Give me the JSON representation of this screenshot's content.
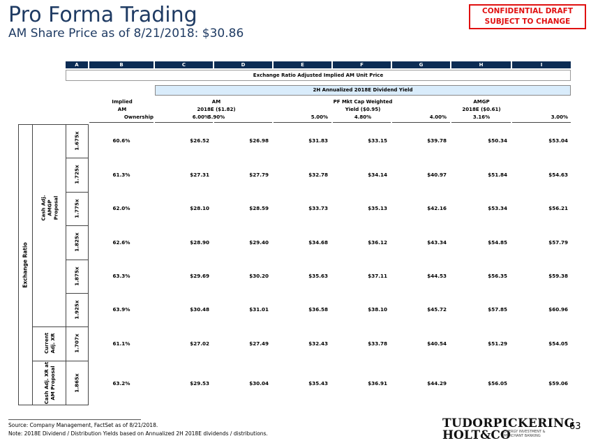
{
  "header": {
    "title": "Pro Forma Trading",
    "subtitle": "AM Share Price as of  8/21/2018: $30.86",
    "confidential_line1": "CONFIDENTIAL DRAFT",
    "confidential_line2": "SUBJECT TO CHANGE"
  },
  "table": {
    "col_letters": [
      "A",
      "B",
      "C",
      "D",
      "E",
      "F",
      "G",
      "H",
      "I"
    ],
    "band_title": "Exchange Ratio Adjusted Implied AM Unit Price",
    "yield_band": "2H Annualized 2018E Dividend Yield",
    "header_implied": [
      "Implied",
      "AM",
      "Ownership"
    ],
    "header_am": [
      "AM",
      "2018E ($1.82)",
      "5.90%"
    ],
    "header_pf": [
      "PF Mkt Cap Weighted",
      "Yield ($0.95)",
      "4.80%"
    ],
    "header_amgp": [
      "AMGP",
      "2018E ($0.61)",
      "3.16%"
    ],
    "header_6": "6.00%",
    "header_5": "5.00%",
    "header_4": "4.00%",
    "header_3": "3.00%",
    "outer_label": "Exchange Ratio",
    "group1_line1": "Cash Adj.",
    "group1_line2": "AMGP",
    "group1_line3": "Proposal",
    "group2_line1": "Current",
    "group2_line2": "Adj. XR",
    "group3_line1": "Cash Adj. XR at",
    "group3_line2": "AM Proposal",
    "rows": [
      {
        "ratio": "1.675x",
        "own": "60.6%",
        "v": [
          "$26.52",
          "$26.98",
          "$31.83",
          "$33.15",
          "$39.78",
          "$50.34",
          "$53.04"
        ]
      },
      {
        "ratio": "1.725x",
        "own": "61.3%",
        "v": [
          "$27.31",
          "$27.79",
          "$32.78",
          "$34.14",
          "$40.97",
          "$51.84",
          "$54.63"
        ]
      },
      {
        "ratio": "1.775x",
        "own": "62.0%",
        "v": [
          "$28.10",
          "$28.59",
          "$33.73",
          "$35.13",
          "$42.16",
          "$53.34",
          "$56.21"
        ]
      },
      {
        "ratio": "1.825x",
        "own": "62.6%",
        "v": [
          "$28.90",
          "$29.40",
          "$34.68",
          "$36.12",
          "$43.34",
          "$54.85",
          "$57.79"
        ]
      },
      {
        "ratio": "1.875x",
        "own": "63.3%",
        "v": [
          "$29.69",
          "$30.20",
          "$35.63",
          "$37.11",
          "$44.53",
          "$56.35",
          "$59.38"
        ]
      },
      {
        "ratio": "1.925x",
        "own": "63.9%",
        "v": [
          "$30.48",
          "$31.01",
          "$36.58",
          "$38.10",
          "$45.72",
          "$57.85",
          "$60.96"
        ]
      },
      {
        "ratio": "1.707x",
        "own": "61.1%",
        "v": [
          "$27.02",
          "$27.49",
          "$32.43",
          "$33.78",
          "$40.54",
          "$51.29",
          "$54.05"
        ]
      },
      {
        "ratio": "1.865x",
        "own": "63.2%",
        "v": [
          "$29.53",
          "$30.04",
          "$35.43",
          "$36.91",
          "$44.29",
          "$56.05",
          "$59.06"
        ]
      }
    ]
  },
  "footer": {
    "source": "Source: Company Management, FactSet as of 8/21/2018.",
    "note": "Note: 2018E Dividend / Distribution Yields based on Annualized 2H 2018E dividends / distributions.",
    "logo_line1": "TUDORPICKERING",
    "logo_line2": "HOLT&CO",
    "logo_tag1": "ENERGY INVESTMENT &",
    "logo_tag2": "MERCHANT BANKING",
    "page_number": "63"
  }
}
